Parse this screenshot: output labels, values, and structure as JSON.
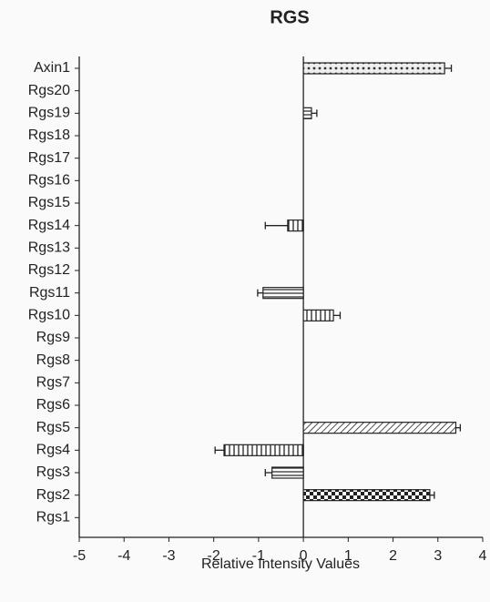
{
  "chart_data": {
    "type": "hbar",
    "title": "RGS",
    "xlabel": "Relative Intensity Values",
    "categories": [
      "Axin1",
      "Rgs20",
      "Rgs19",
      "Rgs18",
      "Rgs17",
      "Rgs16",
      "Rgs15",
      "Rgs14",
      "Rgs13",
      "Rgs12",
      "Rgs11",
      "Rgs10",
      "Rgs9",
      "Rgs8",
      "Rgs7",
      "Rgs6",
      "Rgs5",
      "Rgs4",
      "Rgs3",
      "Rgs2",
      "Rgs1"
    ],
    "values": [
      3.15,
      null,
      0.18,
      null,
      null,
      null,
      null,
      -0.35,
      null,
      null,
      -0.9,
      0.67,
      null,
      null,
      null,
      null,
      3.4,
      -1.77,
      -0.7,
      2.82,
      null
    ],
    "errors": [
      0.15,
      null,
      0.12,
      null,
      null,
      null,
      null,
      0.5,
      null,
      null,
      0.12,
      0.15,
      null,
      null,
      null,
      null,
      0.1,
      0.2,
      0.15,
      0.1,
      null
    ],
    "patterns": [
      "dots",
      null,
      "hlines",
      null,
      null,
      null,
      null,
      "vlines",
      null,
      null,
      "hlines",
      "vlines",
      null,
      null,
      null,
      null,
      "diagonal",
      "vlines",
      "hlines",
      "checker",
      null
    ],
    "color": "#222222",
    "xlim": [
      -5,
      4
    ],
    "xticks": [
      -5,
      -4,
      -3,
      -2,
      -1,
      0,
      1,
      2,
      3,
      4
    ]
  }
}
